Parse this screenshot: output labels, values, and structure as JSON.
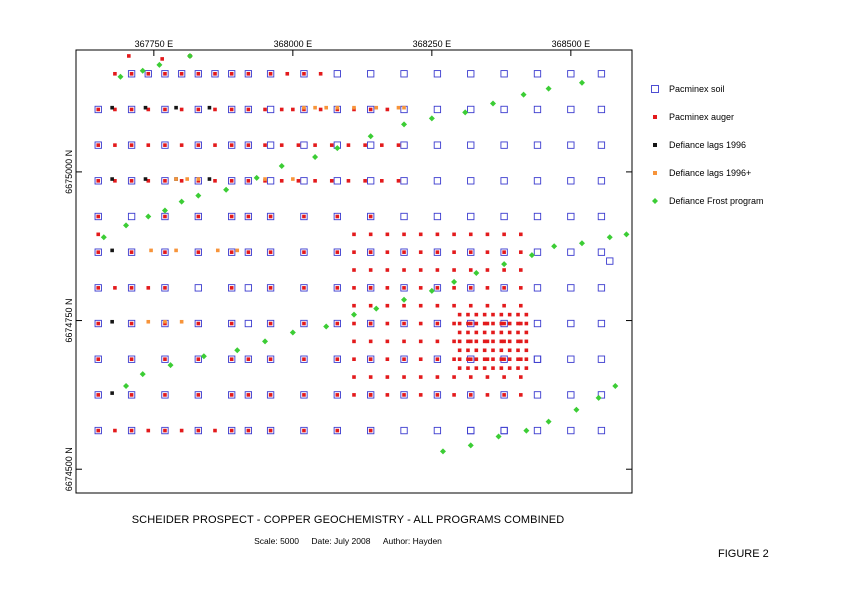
{
  "chart_data": {
    "type": "scatter",
    "title": "SCHEIDER PROSPECT - COPPER GEOCHEMISTRY - ALL PROGRAMS COMBINED",
    "subtitle": {
      "scale": "Scale: 5000",
      "date": "Date: July 2008",
      "author": "Author: Hayden"
    },
    "figure_label": "FIGURE 2",
    "xlim": [
      367610,
      368610
    ],
    "ylim": [
      6674460,
      6675205
    ],
    "x_ticks": [
      367750,
      368000,
      368250,
      368500
    ],
    "x_tick_labels": [
      "367750 E",
      "368000 E",
      "368250 E",
      "368500 E"
    ],
    "y_ticks": [
      6674500,
      6674750,
      6675000
    ],
    "y_tick_labels": [
      "6674500 N",
      "6674750 N",
      "6675000 N"
    ],
    "legend_position": "right",
    "series": [
      {
        "name": "Pacminex soil",
        "marker": "open-square",
        "color": "#3b3bcf",
        "rows": [
          {
            "y": 6675165,
            "x": [
              367710,
              367740,
              367770,
              367800,
              367830,
              367860,
              367890,
              367920,
              367960,
              368020,
              368080,
              368140,
              368200,
              368260,
              368320,
              368380,
              368440,
              368500,
              368555
            ]
          },
          {
            "y": 6675105,
            "x": [
              367650,
              367710,
              367770,
              367830,
              367890,
              367920,
              367960,
              368020,
              368080,
              368140,
              368200,
              368260,
              368320,
              368380,
              368440,
              368500,
              368555
            ]
          },
          {
            "y": 6675045,
            "x": [
              367650,
              367710,
              367770,
              367830,
              367890,
              367920,
              367960,
              368020,
              368080,
              368140,
              368200,
              368260,
              368320,
              368380,
              368440,
              368500,
              368555
            ]
          },
          {
            "y": 6674985,
            "x": [
              367650,
              367710,
              367770,
              367830,
              367890,
              367920,
              367960,
              368020,
              368080,
              368140,
              368200,
              368260,
              368320,
              368380,
              368440,
              368500,
              368555
            ]
          },
          {
            "y": 6674925,
            "x": [
              367650,
              367710,
              367770,
              367830,
              367890,
              367920,
              367960,
              368020,
              368080,
              368140,
              368200,
              368260,
              368320,
              368380,
              368440,
              368500,
              368555
            ]
          },
          {
            "y": 6674865,
            "x": [
              367650,
              367710,
              367770,
              367830,
              367890,
              367920,
              367960,
              368020,
              368080,
              368140,
              368200,
              368260,
              368320,
              368380,
              368440,
              368500,
              368555
            ]
          },
          {
            "y": 6674805,
            "x": [
              367650,
              367710,
              367770,
              367830,
              367890,
              367920,
              367960,
              368020,
              368080,
              368140,
              368200,
              368260,
              368320,
              368380,
              368440,
              368500,
              368555
            ]
          },
          {
            "y": 6674745,
            "x": [
              367650,
              367710,
              367770,
              367830,
              367890,
              367920,
              367960,
              368020,
              368080,
              368140,
              368200,
              368260,
              368320,
              368380,
              368440,
              368500,
              368555
            ]
          },
          {
            "y": 6674685,
            "x": [
              367650,
              367710,
              367770,
              367830,
              367890,
              367920,
              367960,
              368020,
              368080,
              368140,
              368200,
              368260,
              368320,
              368380,
              368440,
              368500,
              368555
            ]
          },
          {
            "y": 6674625,
            "x": [
              367650,
              367710,
              367770,
              367830,
              367890,
              367920,
              367960,
              368020,
              368080,
              368140,
              368200,
              368260,
              368320,
              368380,
              368440,
              368500,
              368555
            ]
          },
          {
            "y": 6674565,
            "x": [
              367650,
              367710,
              367770,
              367830,
              367890,
              367920,
              367960,
              368020,
              368080,
              368140,
              368200,
              368260,
              368320,
              368380,
              368440,
              368500,
              368555
            ]
          }
        ],
        "extra": [
          [
            368570,
            6674850
          ],
          [
            368320,
            6674565
          ],
          [
            368380,
            6674565
          ],
          [
            368440,
            6674685
          ]
        ]
      },
      {
        "name": "Pacminex auger",
        "marker": "filled-square",
        "color": "#e31a1c",
        "rows": [
          {
            "y": 6675165,
            "x": [
              367680,
              367710,
              367740,
              367770,
              367800,
              367830,
              367860,
              367890,
              367920,
              367960,
              367990,
              368020,
              368050
            ]
          },
          {
            "y": 6675105,
            "x": [
              367650,
              367680,
              367710,
              367740,
              367770,
              367800,
              367830,
              367860,
              367890,
              367920,
              367950,
              367980,
              368000,
              368020,
              368050,
              368080,
              368110,
              368140,
              368170
            ]
          },
          {
            "y": 6675045,
            "x": [
              367650,
              367680,
              367710,
              367740,
              367770,
              367800,
              367830,
              367860,
              367890,
              367920,
              367950,
              367980,
              368010,
              368040,
              368070,
              368100,
              368130,
              368160,
              368190
            ]
          },
          {
            "y": 6674985,
            "x": [
              367650,
              367680,
              367710,
              367740,
              367770,
              367800,
              367830,
              367860,
              367890,
              367920,
              367950,
              367980,
              368010,
              368040,
              368070,
              368100,
              368130,
              368160,
              368190
            ]
          },
          {
            "y": 6674925,
            "x": [
              367650,
              367770,
              367830,
              367890,
              367920,
              367960,
              368020,
              368080,
              368140
            ]
          },
          {
            "y": 6674865,
            "x": [
              367650,
              367710,
              367770,
              367830,
              367890,
              367920,
              367960,
              368020,
              368080,
              368140
            ]
          },
          {
            "y": 6674805,
            "x": [
              367650,
              367680,
              367710,
              367740,
              367770,
              367890,
              367960,
              368020,
              368080,
              368140
            ]
          },
          {
            "y": 6674745,
            "x": [
              367650,
              367710,
              367770,
              367830,
              367890,
              367960,
              368020,
              368080,
              368140
            ]
          },
          {
            "y": 6674685,
            "x": [
              367650,
              367710,
              367770,
              367830,
              367890,
              367920,
              367960,
              368020,
              368080,
              368140
            ]
          },
          {
            "y": 6674625,
            "x": [
              367650,
              367710,
              367770,
              367830,
              367890,
              367920,
              367960,
              368020,
              368080,
              368140
            ]
          },
          {
            "y": 6674565,
            "x": [
              367650,
              367680,
              367710,
              367740,
              367770,
              367800,
              367830,
              367860,
              367890,
              367920,
              367960,
              368020,
              368080,
              368140
            ]
          }
        ],
        "grid_blocks": [
          {
            "x_start": 368110,
            "x_end": 368410,
            "x_step": 30,
            "y_values": [
              6674895,
              6674865,
              6674835,
              6674805,
              6674775,
              6674745,
              6674715,
              6674685,
              6674655,
              6674625
            ]
          },
          {
            "x_start": 368300,
            "x_end": 368420,
            "x_step": 15,
            "y_values": [
              6674760,
              6674745,
              6674730,
              6674715,
              6674700,
              6674685,
              6674670
            ]
          }
        ],
        "extra": [
          [
            367705,
            6675195
          ],
          [
            367765,
            6675190
          ],
          [
            367815,
            6675195
          ],
          [
            367650,
            6674895
          ]
        ]
      },
      {
        "name": "Defiance lags 1996",
        "marker": "filled-square",
        "color": "#151515",
        "points": [
          [
            367675,
            6675108
          ],
          [
            367735,
            6675108
          ],
          [
            367790,
            6675108
          ],
          [
            367850,
            6675108
          ],
          [
            367675,
            6674988
          ],
          [
            367735,
            6674988
          ],
          [
            367790,
            6674988
          ],
          [
            367850,
            6674988
          ],
          [
            367675,
            6674868
          ],
          [
            367675,
            6674748
          ],
          [
            367675,
            6674628
          ]
        ]
      },
      {
        "name": "Defiance lags 1996+",
        "marker": "filled-square",
        "color": "#f7943a",
        "points": [
          [
            368020,
            6675108
          ],
          [
            368040,
            6675108
          ],
          [
            368060,
            6675108
          ],
          [
            368080,
            6675108
          ],
          [
            368110,
            6675108
          ],
          [
            368150,
            6675108
          ],
          [
            368190,
            6675108
          ],
          [
            368200,
            6675108
          ],
          [
            367790,
            6674988
          ],
          [
            367810,
            6674988
          ],
          [
            367830,
            6674988
          ],
          [
            367950,
            6674988
          ],
          [
            368000,
            6674988
          ],
          [
            367745,
            6674868
          ],
          [
            367790,
            6674868
          ],
          [
            367865,
            6674868
          ],
          [
            367900,
            6674868
          ],
          [
            367740,
            6674748
          ],
          [
            367770,
            6674748
          ],
          [
            367800,
            6674748
          ]
        ]
      },
      {
        "name": "Defiance Frost program",
        "marker": "diamond",
        "color": "#3ccd35",
        "points": [
          [
            367690,
            6675160
          ],
          [
            367730,
            6675170
          ],
          [
            367760,
            6675180
          ],
          [
            367815,
            6675195
          ],
          [
            367865,
            6675205
          ],
          [
            367660,
            6674890
          ],
          [
            367700,
            6674910
          ],
          [
            367740,
            6674925
          ],
          [
            367770,
            6674935
          ],
          [
            367800,
            6674950
          ],
          [
            367830,
            6674960
          ],
          [
            367880,
            6674970
          ],
          [
            367935,
            6674990
          ],
          [
            367980,
            6675010
          ],
          [
            368040,
            6675025
          ],
          [
            368080,
            6675040
          ],
          [
            368140,
            6675060
          ],
          [
            368200,
            6675080
          ],
          [
            368250,
            6675090
          ],
          [
            368310,
            6675100
          ],
          [
            368360,
            6675115
          ],
          [
            368415,
            6675130
          ],
          [
            368460,
            6675140
          ],
          [
            368520,
            6675150
          ],
          [
            367700,
            6674640
          ],
          [
            367730,
            6674660
          ],
          [
            367780,
            6674675
          ],
          [
            367840,
            6674690
          ],
          [
            367900,
            6674700
          ],
          [
            367950,
            6674715
          ],
          [
            368000,
            6674730
          ],
          [
            368060,
            6674740
          ],
          [
            368110,
            6674760
          ],
          [
            368150,
            6674770
          ],
          [
            368200,
            6674785
          ],
          [
            368250,
            6674800
          ],
          [
            368290,
            6674815
          ],
          [
            368330,
            6674830
          ],
          [
            368380,
            6674845
          ],
          [
            368430,
            6674860
          ],
          [
            368470,
            6674875
          ],
          [
            368520,
            6674880
          ],
          [
            368570,
            6674890
          ],
          [
            368600,
            6674895
          ],
          [
            368270,
            6674530
          ],
          [
            368320,
            6674540
          ],
          [
            368370,
            6674555
          ],
          [
            368420,
            6674565
          ],
          [
            368460,
            6674580
          ],
          [
            368510,
            6674600
          ],
          [
            368550,
            6674620
          ],
          [
            368580,
            6674640
          ]
        ]
      }
    ]
  }
}
